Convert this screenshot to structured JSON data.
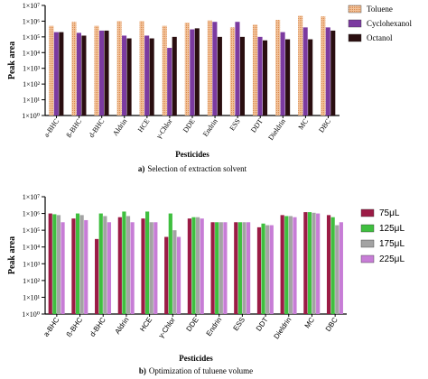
{
  "chart_data": [
    {
      "type": "bar",
      "caption_prefix": "a)",
      "caption_text": "Selection of extraction solvent",
      "xlabel": "Pesticides",
      "ylabel": "Peak area",
      "yscale": "log",
      "ylim": [
        1,
        10000000
      ],
      "yticks": [
        "1×10⁰",
        "1×10¹",
        "1×10²",
        "1×10³",
        "1×10⁴",
        "1×10⁵",
        "1×10⁶",
        "1×10⁷"
      ],
      "legend_position": "right",
      "categories": [
        "a-BHC",
        "ß-BHC",
        "d-BHC",
        "Aldrin",
        "HCE",
        "γ-Chlor",
        "DDE",
        "Endrin",
        "ESS",
        "DDT",
        "Dieldrin",
        "MC",
        "DBC"
      ],
      "series": [
        {
          "name": "Toluene",
          "color": "#f2c29a",
          "pattern": "dotted",
          "values": [
            500000,
            900000,
            500000,
            1000000,
            1000000,
            500000,
            800000,
            1100000,
            400000,
            600000,
            1200000,
            2200000,
            2000000
          ]
        },
        {
          "name": "Cyclohexanol",
          "color": "#7b3aa0",
          "pattern": "solid",
          "values": [
            200000,
            180000,
            250000,
            120000,
            120000,
            20000,
            300000,
            900000,
            900000,
            100000,
            200000,
            400000,
            400000
          ]
        },
        {
          "name": "Octanol",
          "color": "#2a0e10",
          "pattern": "solid",
          "values": [
            200000,
            120000,
            250000,
            80000,
            80000,
            100000,
            350000,
            100000,
            100000,
            60000,
            70000,
            70000,
            250000
          ]
        }
      ]
    },
    {
      "type": "bar",
      "caption_prefix": "b)",
      "caption_text": "Optimization of tuluene volume",
      "xlabel": "Pesticides",
      "ylabel": "Peak area",
      "yscale": "log",
      "ylim": [
        1,
        10000000
      ],
      "yticks": [
        "1×10⁰",
        "1×10¹",
        "1×10²",
        "1×10³",
        "1×10⁴",
        "1×10⁵",
        "1×10⁶",
        "1×10⁷"
      ],
      "legend_position": "right",
      "categories": [
        "a-BHC",
        "ß-BHC",
        "d-BHC",
        "Aldrin",
        "HCE",
        "γ-Chlor",
        "DDE",
        "Endrin",
        "ESS",
        "DDT",
        "Dieldrin",
        "MC",
        "DBC"
      ],
      "series": [
        {
          "name": "75μL",
          "color": "#9b1b45",
          "values": [
            1000000,
            500000,
            30000,
            600000,
            500000,
            40000,
            500000,
            300000,
            300000,
            150000,
            800000,
            1200000,
            800000
          ]
        },
        {
          "name": "125μL",
          "color": "#3fbf3f",
          "values": [
            900000,
            1000000,
            1000000,
            1300000,
            1300000,
            1000000,
            600000,
            300000,
            300000,
            250000,
            700000,
            1200000,
            600000
          ]
        },
        {
          "name": "175μL",
          "color": "#a3a3a3",
          "values": [
            800000,
            800000,
            700000,
            700000,
            300000,
            100000,
            600000,
            300000,
            300000,
            200000,
            700000,
            1100000,
            200000
          ]
        },
        {
          "name": "225μL",
          "color": "#c77dd6",
          "values": [
            300000,
            400000,
            300000,
            300000,
            300000,
            40000,
            500000,
            300000,
            300000,
            200000,
            600000,
            1000000,
            300000
          ]
        }
      ]
    }
  ]
}
